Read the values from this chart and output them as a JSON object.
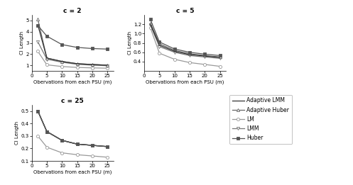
{
  "x": [
    2,
    5,
    10,
    15,
    20,
    25
  ],
  "c2": {
    "adaptive_lmm": [
      4.6,
      1.65,
      1.35,
      1.15,
      1.08,
      1.02
    ],
    "adaptive_huber": [
      5.1,
      1.65,
      1.35,
      1.15,
      1.08,
      1.02
    ],
    "lm": [
      2.25,
      1.05,
      0.9,
      0.82,
      0.78,
      0.75
    ],
    "lmm": [
      3.1,
      1.55,
      1.28,
      1.1,
      1.02,
      0.97
    ],
    "huber": [
      4.55,
      3.6,
      2.85,
      2.6,
      2.5,
      2.45
    ]
  },
  "c5": {
    "adaptive_lmm": [
      1.2,
      0.75,
      0.62,
      0.55,
      0.52,
      0.49
    ],
    "adaptive_huber": [
      1.22,
      0.78,
      0.64,
      0.57,
      0.53,
      0.5
    ],
    "lm": [
      1.12,
      0.58,
      0.45,
      0.38,
      0.34,
      0.3
    ],
    "lmm": [
      1.18,
      0.72,
      0.6,
      0.53,
      0.5,
      0.47
    ],
    "huber": [
      1.3,
      0.82,
      0.67,
      0.6,
      0.56,
      0.53
    ]
  },
  "c25": {
    "adaptive_lmm": [
      0.5,
      0.335,
      0.265,
      0.235,
      0.225,
      0.215
    ],
    "adaptive_huber": [
      0.5,
      0.335,
      0.265,
      0.235,
      0.225,
      0.215
    ],
    "lm": [
      0.3,
      0.21,
      0.165,
      0.15,
      0.14,
      0.13
    ],
    "lmm": [
      0.5,
      0.335,
      0.265,
      0.235,
      0.225,
      0.215
    ],
    "huber": [
      0.5,
      0.335,
      0.265,
      0.235,
      0.225,
      0.215
    ]
  },
  "titles": [
    "c = 2",
    "c = 5",
    "c = 25"
  ],
  "ylabel": "CI Length",
  "xlabel": "Obervations from each PSU (m)",
  "c2_ylim": [
    0.5,
    5.5
  ],
  "c2_yticks": [
    1,
    2,
    3,
    4,
    5
  ],
  "c5_ylim": [
    0.2,
    1.4
  ],
  "c5_yticks": [
    0.4,
    0.6,
    0.8,
    1.0,
    1.2
  ],
  "c25_ylim": [
    0.1,
    0.55
  ],
  "c25_yticks": [
    0.1,
    0.2,
    0.3,
    0.4,
    0.5
  ],
  "legend_entries": [
    "Adaptive LMM",
    "Adaptive Huber",
    "LM",
    "LMM",
    "Huber"
  ],
  "color_adaptive_lmm": "#333333",
  "color_adaptive_huber": "#666666",
  "color_lm": "#999999",
  "color_lmm": "#777777",
  "color_huber": "#555555"
}
